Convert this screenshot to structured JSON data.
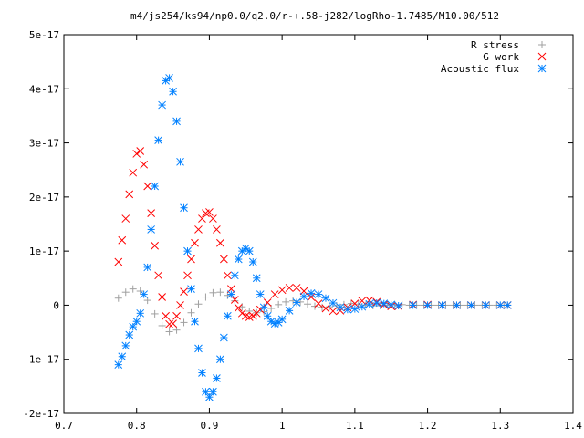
{
  "chart_data": {
    "type": "scatter",
    "title": "m4/js254/ks94/np0.0/q2.0/r-+.58-j282/logRho-1.7485/M10.00/512",
    "xlabel": "",
    "ylabel": "",
    "xlim": [
      0.7,
      1.4
    ],
    "ylim": [
      -2e-17,
      5e-17
    ],
    "grid": false,
    "legend_position": "top-right",
    "x_ticks": [
      {
        "value": 0.7,
        "label": "0.7"
      },
      {
        "value": 0.8,
        "label": "0.8"
      },
      {
        "value": 0.9,
        "label": "0.9"
      },
      {
        "value": 1.0,
        "label": "1"
      },
      {
        "value": 1.1,
        "label": "1.1"
      },
      {
        "value": 1.2,
        "label": "1.2"
      },
      {
        "value": 1.3,
        "label": "1.3"
      },
      {
        "value": 1.4,
        "label": "1.4"
      }
    ],
    "y_ticks": [
      {
        "value": -2e-17,
        "label": "-2e-17"
      },
      {
        "value": -1e-17,
        "label": "-1e-17"
      },
      {
        "value": 0,
        "label": "0"
      },
      {
        "value": 1e-17,
        "label": "1e-17"
      },
      {
        "value": 2e-17,
        "label": "2e-17"
      },
      {
        "value": 3e-17,
        "label": "3e-17"
      },
      {
        "value": 4e-17,
        "label": "4e-17"
      },
      {
        "value": 5e-17,
        "label": "5e-17"
      }
    ],
    "series": [
      {
        "name": "R stress",
        "marker": "plus",
        "color": "#a0a0a0",
        "x": [
          0.775,
          0.785,
          0.795,
          0.805,
          0.815,
          0.825,
          0.835,
          0.845,
          0.855,
          0.865,
          0.875,
          0.885,
          0.895,
          0.905,
          0.915,
          0.925,
          0.935,
          0.945,
          0.955,
          0.965,
          0.975,
          0.985,
          0.995,
          1.005,
          1.015,
          1.025,
          1.035,
          1.045,
          1.055,
          1.065,
          1.075,
          1.085,
          1.095,
          1.105,
          1.115,
          1.125,
          1.135,
          1.145,
          1.155,
          1.165,
          1.175,
          1.185,
          1.195,
          1.205,
          1.215,
          1.225,
          1.235,
          1.245,
          1.255,
          1.265,
          1.275,
          1.285,
          1.295,
          1.305,
          1.31
        ],
        "y": [
          1.3e-18,
          2.4e-18,
          3e-18,
          2.6e-18,
          9e-19,
          -1.6e-18,
          -3.8e-18,
          -4.9e-18,
          -4.6e-18,
          -3.2e-18,
          -1.4e-18,
          2e-19,
          1.5e-18,
          2.3e-18,
          2.4e-18,
          1.8e-18,
          8e-19,
          -3e-19,
          -1.1e-18,
          -1.4e-18,
          -1.2e-18,
          -6e-19,
          1e-19,
          6e-19,
          8e-19,
          6e-19,
          2e-19,
          -2e-19,
          -4e-19,
          -3e-19,
          -1e-19,
          1e-19,
          3e-19,
          2e-19,
          0,
          -1e-19,
          -1e-19,
          0,
          1e-19,
          1e-19,
          0,
          0,
          0,
          0,
          0,
          0,
          0,
          0,
          0,
          0,
          0,
          0,
          0,
          0,
          0
        ]
      },
      {
        "name": "G work",
        "marker": "cross",
        "color": "#ff0000",
        "x": [
          0.775,
          0.78,
          0.785,
          0.79,
          0.795,
          0.8,
          0.805,
          0.81,
          0.815,
          0.82,
          0.825,
          0.83,
          0.835,
          0.84,
          0.845,
          0.85,
          0.855,
          0.86,
          0.865,
          0.87,
          0.875,
          0.88,
          0.885,
          0.89,
          0.895,
          0.9,
          0.905,
          0.91,
          0.915,
          0.92,
          0.925,
          0.93,
          0.935,
          0.94,
          0.945,
          0.95,
          0.955,
          0.96,
          0.965,
          0.97,
          0.98,
          0.99,
          1.0,
          1.01,
          1.02,
          1.03,
          1.04,
          1.05,
          1.06,
          1.07,
          1.08,
          1.09,
          1.1,
          1.11,
          1.12,
          1.13,
          1.14,
          1.15,
          1.16,
          1.18,
          1.2,
          1.22,
          1.24,
          1.26,
          1.28,
          1.3,
          1.31
        ],
        "y": [
          8e-18,
          1.2e-17,
          1.6e-17,
          2.05e-17,
          2.45e-17,
          2.8e-17,
          2.85e-17,
          2.6e-17,
          2.2e-17,
          1.7e-17,
          1.1e-17,
          5.5e-18,
          1.5e-18,
          -2e-18,
          -3.5e-18,
          -3.4e-18,
          -2e-18,
          0,
          2.5e-18,
          5.5e-18,
          8.5e-18,
          1.15e-17,
          1.4e-17,
          1.6e-17,
          1.7e-17,
          1.72e-17,
          1.6e-17,
          1.4e-17,
          1.15e-17,
          8.5e-18,
          5.5e-18,
          3e-18,
          1e-18,
          -5e-19,
          -1.5e-18,
          -2e-18,
          -2.2e-18,
          -2e-18,
          -1.5e-18,
          -8e-19,
          5e-19,
          2e-18,
          2.8e-18,
          3.2e-18,
          3.2e-18,
          2.6e-18,
          1.5e-18,
          3e-19,
          -6e-19,
          -1.1e-18,
          -1e-18,
          -4e-19,
          3e-19,
          8e-19,
          9e-19,
          6e-19,
          1e-19,
          -2e-19,
          -2e-19,
          1e-19,
          1e-19,
          0,
          0,
          0,
          0,
          0,
          0
        ]
      },
      {
        "name": "Acoustic flux",
        "marker": "star",
        "color": "#0080ff",
        "x": [
          0.775,
          0.78,
          0.785,
          0.79,
          0.795,
          0.8,
          0.805,
          0.81,
          0.815,
          0.82,
          0.825,
          0.83,
          0.835,
          0.84,
          0.845,
          0.85,
          0.855,
          0.86,
          0.865,
          0.87,
          0.875,
          0.88,
          0.885,
          0.89,
          0.895,
          0.9,
          0.905,
          0.91,
          0.915,
          0.92,
          0.925,
          0.93,
          0.935,
          0.94,
          0.945,
          0.95,
          0.955,
          0.96,
          0.965,
          0.97,
          0.975,
          0.98,
          0.985,
          0.99,
          0.995,
          1.0,
          1.01,
          1.02,
          1.03,
          1.04,
          1.05,
          1.06,
          1.07,
          1.08,
          1.09,
          1.1,
          1.11,
          1.12,
          1.13,
          1.14,
          1.15,
          1.16,
          1.18,
          1.2,
          1.22,
          1.24,
          1.26,
          1.28,
          1.3,
          1.31
        ],
        "y": [
          -1.1e-17,
          -9.5e-18,
          -7.5e-18,
          -5.5e-18,
          -4e-18,
          -3e-18,
          -1.5e-18,
          2e-18,
          7e-18,
          1.4e-17,
          2.2e-17,
          3.05e-17,
          3.7e-17,
          4.15e-17,
          4.2e-17,
          3.95e-17,
          3.4e-17,
          2.65e-17,
          1.8e-17,
          1e-17,
          3e-18,
          -3e-18,
          -8e-18,
          -1.25e-17,
          -1.6e-17,
          -1.7e-17,
          -1.6e-17,
          -1.35e-17,
          -1e-17,
          -6e-18,
          -2e-18,
          2e-18,
          5.5e-18,
          8.5e-18,
          1e-17,
          1.05e-17,
          1e-17,
          8e-18,
          5e-18,
          2e-18,
          -4e-19,
          -2e-18,
          -3e-18,
          -3.4e-18,
          -3.2e-18,
          -2.6e-18,
          -1e-18,
          5e-19,
          1.6e-18,
          2.2e-18,
          2e-18,
          1.3e-18,
          4e-19,
          -4e-19,
          -8e-19,
          -7e-19,
          -3e-19,
          2e-19,
          4e-19,
          3e-19,
          1e-19,
          -1e-19,
          0,
          0,
          0,
          0,
          0,
          0,
          0,
          0
        ]
      }
    ]
  }
}
